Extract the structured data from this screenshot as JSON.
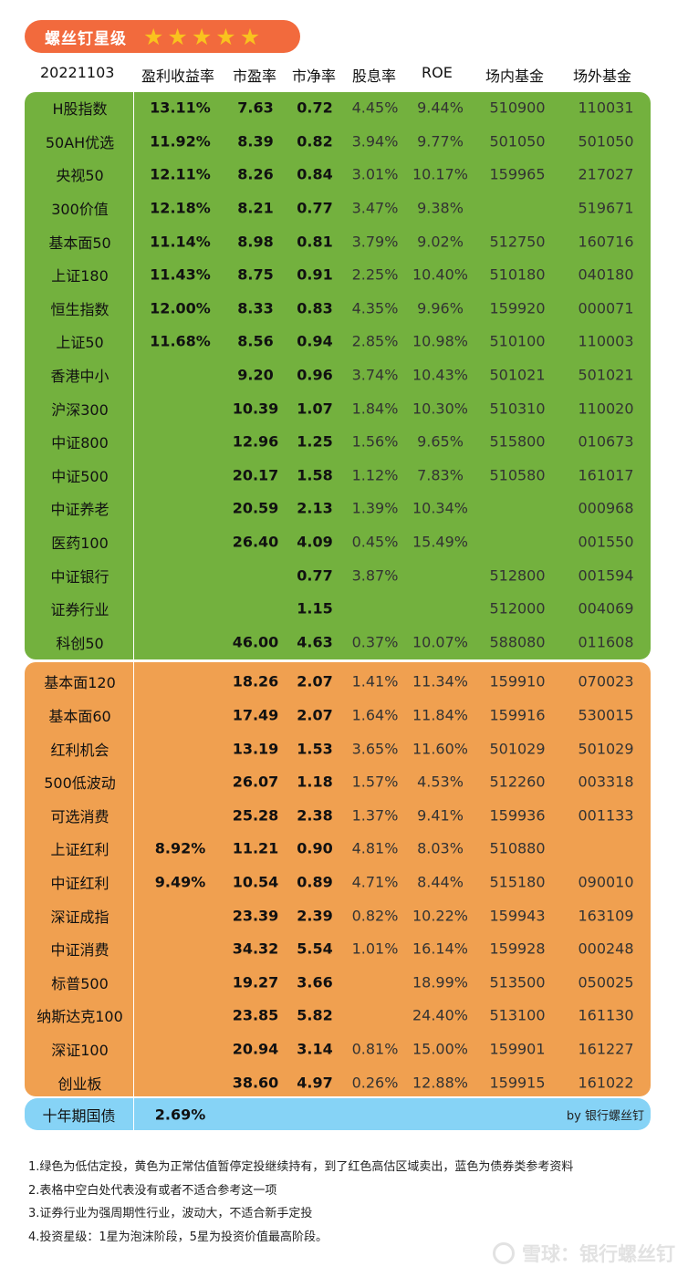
{
  "badge": {
    "title": "螺丝钉星级",
    "star": "★",
    "stars": 5
  },
  "colors": {
    "badge": "#f26a3d",
    "star": "#f9c21e",
    "green": "#73b13e",
    "orange": "#f0a050",
    "blue": "#86d3f6"
  },
  "columns": [
    "20221103",
    "盈利收益率",
    "市盈率",
    "市净率",
    "股息率",
    "ROE",
    "场内基金",
    "场外基金"
  ],
  "rows": [
    {
      "name": "H股指数",
      "yield": "13.11%",
      "pe": "7.63",
      "pb": "0.72",
      "div": "4.45%",
      "roe": "9.44%",
      "in": "510900",
      "out": "110031",
      "zone": "green"
    },
    {
      "name": "50AH优选",
      "yield": "11.92%",
      "pe": "8.39",
      "pb": "0.82",
      "div": "3.94%",
      "roe": "9.77%",
      "in": "501050",
      "out": "501050",
      "zone": "green"
    },
    {
      "name": "央视50",
      "yield": "12.11%",
      "pe": "8.26",
      "pb": "0.84",
      "div": "3.01%",
      "roe": "10.17%",
      "in": "159965",
      "out": "217027",
      "zone": "green"
    },
    {
      "name": "300价值",
      "yield": "12.18%",
      "pe": "8.21",
      "pb": "0.77",
      "div": "3.47%",
      "roe": "9.38%",
      "in": "",
      "out": "519671",
      "zone": "green"
    },
    {
      "name": "基本面50",
      "yield": "11.14%",
      "pe": "8.98",
      "pb": "0.81",
      "div": "3.79%",
      "roe": "9.02%",
      "in": "512750",
      "out": "160716",
      "zone": "green"
    },
    {
      "name": "上证180",
      "yield": "11.43%",
      "pe": "8.75",
      "pb": "0.91",
      "div": "2.25%",
      "roe": "10.40%",
      "in": "510180",
      "out": "040180",
      "zone": "green"
    },
    {
      "name": "恒生指数",
      "yield": "12.00%",
      "pe": "8.33",
      "pb": "0.83",
      "div": "4.35%",
      "roe": "9.96%",
      "in": "159920",
      "out": "000071",
      "zone": "green"
    },
    {
      "name": "上证50",
      "yield": "11.68%",
      "pe": "8.56",
      "pb": "0.94",
      "div": "2.85%",
      "roe": "10.98%",
      "in": "510100",
      "out": "110003",
      "zone": "green"
    },
    {
      "name": "香港中小",
      "yield": "",
      "pe": "9.20",
      "pb": "0.96",
      "div": "3.74%",
      "roe": "10.43%",
      "in": "501021",
      "out": "501021",
      "zone": "green"
    },
    {
      "name": "沪深300",
      "yield": "",
      "pe": "10.39",
      "pb": "1.07",
      "div": "1.84%",
      "roe": "10.30%",
      "in": "510310",
      "out": "110020",
      "zone": "green"
    },
    {
      "name": "中证800",
      "yield": "",
      "pe": "12.96",
      "pb": "1.25",
      "div": "1.56%",
      "roe": "9.65%",
      "in": "515800",
      "out": "010673",
      "zone": "green"
    },
    {
      "name": "中证500",
      "yield": "",
      "pe": "20.17",
      "pb": "1.58",
      "div": "1.12%",
      "roe": "7.83%",
      "in": "510580",
      "out": "161017",
      "zone": "green"
    },
    {
      "name": "中证养老",
      "yield": "",
      "pe": "20.59",
      "pb": "2.13",
      "div": "1.39%",
      "roe": "10.34%",
      "in": "",
      "out": "000968",
      "zone": "green"
    },
    {
      "name": "医药100",
      "yield": "",
      "pe": "26.40",
      "pb": "4.09",
      "div": "0.45%",
      "roe": "15.49%",
      "in": "",
      "out": "001550",
      "zone": "green"
    },
    {
      "name": "中证银行",
      "yield": "",
      "pe": "",
      "pb": "0.77",
      "div": "3.87%",
      "roe": "",
      "in": "512800",
      "out": "001594",
      "zone": "green"
    },
    {
      "name": "证券行业",
      "yield": "",
      "pe": "",
      "pb": "1.15",
      "div": "",
      "roe": "",
      "in": "512000",
      "out": "004069",
      "zone": "green"
    },
    {
      "name": "科创50",
      "yield": "",
      "pe": "46.00",
      "pb": "4.63",
      "div": "0.37%",
      "roe": "10.07%",
      "in": "588080",
      "out": "011608",
      "zone": "green"
    },
    {
      "name": "基本面120",
      "yield": "",
      "pe": "18.26",
      "pb": "2.07",
      "div": "1.41%",
      "roe": "11.34%",
      "in": "159910",
      "out": "070023",
      "zone": "orange"
    },
    {
      "name": "基本面60",
      "yield": "",
      "pe": "17.49",
      "pb": "2.07",
      "div": "1.64%",
      "roe": "11.84%",
      "in": "159916",
      "out": "530015",
      "zone": "orange"
    },
    {
      "name": "红利机会",
      "yield": "",
      "pe": "13.19",
      "pb": "1.53",
      "div": "3.65%",
      "roe": "11.60%",
      "in": "501029",
      "out": "501029",
      "zone": "orange"
    },
    {
      "name": "500低波动",
      "yield": "",
      "pe": "26.07",
      "pb": "1.18",
      "div": "1.57%",
      "roe": "4.53%",
      "in": "512260",
      "out": "003318",
      "zone": "orange"
    },
    {
      "name": "可选消费",
      "yield": "",
      "pe": "25.28",
      "pb": "2.38",
      "div": "1.37%",
      "roe": "9.41%",
      "in": "159936",
      "out": "001133",
      "zone": "orange"
    },
    {
      "name": "上证红利",
      "yield": "8.92%",
      "pe": "11.21",
      "pb": "0.90",
      "div": "4.81%",
      "roe": "8.03%",
      "in": "510880",
      "out": "",
      "zone": "orange"
    },
    {
      "name": "中证红利",
      "yield": "9.49%",
      "pe": "10.54",
      "pb": "0.89",
      "div": "4.71%",
      "roe": "8.44%",
      "in": "515180",
      "out": "090010",
      "zone": "orange"
    },
    {
      "name": "深证成指",
      "yield": "",
      "pe": "23.39",
      "pb": "2.39",
      "div": "0.82%",
      "roe": "10.22%",
      "in": "159943",
      "out": "163109",
      "zone": "orange"
    },
    {
      "name": "中证消费",
      "yield": "",
      "pe": "34.32",
      "pb": "5.54",
      "div": "1.01%",
      "roe": "16.14%",
      "in": "159928",
      "out": "000248",
      "zone": "orange"
    },
    {
      "name": "标普500",
      "yield": "",
      "pe": "19.27",
      "pb": "3.66",
      "div": "",
      "roe": "18.99%",
      "in": "513500",
      "out": "050025",
      "zone": "orange"
    },
    {
      "name": "纳斯达克100",
      "yield": "",
      "pe": "23.85",
      "pb": "5.82",
      "div": "",
      "roe": "24.40%",
      "in": "513100",
      "out": "161130",
      "zone": "orange"
    },
    {
      "name": "深证100",
      "yield": "",
      "pe": "20.94",
      "pb": "3.14",
      "div": "0.81%",
      "roe": "15.00%",
      "in": "159901",
      "out": "161227",
      "zone": "orange"
    },
    {
      "name": "创业板",
      "yield": "",
      "pe": "38.60",
      "pb": "4.97",
      "div": "0.26%",
      "roe": "12.88%",
      "in": "159915",
      "out": "161022",
      "zone": "orange"
    }
  ],
  "bond": {
    "name": "十年期国债",
    "yield": "2.69%",
    "credit": "by 银行螺丝钉"
  },
  "notes": [
    "1.绿色为低估定投，黄色为正常估值暂停定投继续持有，到了红色高估区域卖出，蓝色为债券类参考资料",
    "2.表格中空白处代表没有或者不适合参考这一项",
    "3.证券行业为强周期性行业，波动大，不适合新手定投",
    "4.投资星级：1星为泡沫阶段，5星为投资价值最高阶段。"
  ],
  "watermark": "雪球：银行螺丝钉"
}
